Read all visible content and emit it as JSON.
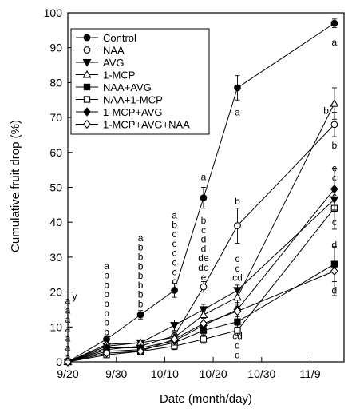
{
  "chart_data": {
    "type": "line",
    "title": "",
    "xlabel": "Date (month/day)",
    "ylabel": "Cumulative fruit drop (%)",
    "x_tick_labels": [
      "9/20",
      "9/30",
      "10/10",
      "10/20",
      "10/30",
      "11/9"
    ],
    "x_tick_days": [
      0,
      10,
      20,
      30,
      40,
      50
    ],
    "y_ticks": [
      0,
      10,
      20,
      30,
      40,
      50,
      60,
      70,
      80,
      90,
      100
    ],
    "ylim": [
      0,
      100
    ],
    "xlim": [
      0,
      57
    ],
    "grid": false,
    "legend_position": "top-left",
    "x_dates": [
      "9/20",
      "9/28",
      "10/5",
      "10/12",
      "10/18",
      "10/25",
      "11/14"
    ],
    "x_days": [
      0,
      8,
      15,
      22,
      28,
      35,
      55
    ],
    "series": [
      {
        "name": "Control",
        "marker": "filled-circle",
        "values": [
          0,
          6.5,
          13.5,
          20.5,
          47,
          78.5,
          97
        ],
        "errors": [
          0,
          1.0,
          1.2,
          2.0,
          3.0,
          3.5,
          1.2
        ]
      },
      {
        "name": "NAA",
        "marker": "open-circle",
        "values": [
          0,
          3.5,
          4.5,
          7.5,
          21.5,
          39,
          68
        ],
        "errors": [
          0,
          0.8,
          1.0,
          1.2,
          1.5,
          5.0,
          3.5
        ]
      },
      {
        "name": "AVG",
        "marker": "filled-triangle-down",
        "values": [
          0,
          4.5,
          5.5,
          10.5,
          15,
          20.5,
          46.5
        ],
        "errors": [
          0,
          0.8,
          0.8,
          1.5,
          1.5,
          1.5,
          3.5
        ]
      },
      {
        "name": "1-MCP",
        "marker": "open-triangle-up",
        "values": [
          0,
          5,
          5.5,
          7,
          13.5,
          18.5,
          74
        ],
        "errors": [
          0,
          0.8,
          0.8,
          1.0,
          1.5,
          2.0,
          4.5
        ]
      },
      {
        "name": "NAA+AVG",
        "marker": "filled-square",
        "values": [
          0,
          3,
          3.5,
          5.5,
          9,
          11.5,
          28
        ],
        "errors": [
          0,
          0.6,
          0.8,
          1.0,
          1.2,
          1.5,
          5.0
        ]
      },
      {
        "name": "NAA+1-MCP",
        "marker": "open-square",
        "values": [
          0,
          2,
          3,
          4.5,
          6.5,
          9,
          44
        ],
        "errors": [
          0,
          0.6,
          0.6,
          1.0,
          1.2,
          1.5,
          6.0
        ]
      },
      {
        "name": "1-MCP+AVG",
        "marker": "filled-diamond",
        "values": [
          0,
          4,
          4,
          6,
          10.5,
          15,
          49.5
        ],
        "errors": [
          0,
          0.8,
          0.8,
          1.2,
          1.5,
          2.0,
          6.0
        ]
      },
      {
        "name": "1-MCP+AVG+NAA",
        "marker": "open-diamond",
        "values": [
          0,
          2.5,
          3,
          6.5,
          11,
          14.5,
          26
        ],
        "errors": [
          0,
          0.6,
          0.6,
          1.0,
          1.5,
          1.5,
          7.0
        ]
      }
    ],
    "annotations": [
      {
        "day": 0,
        "y": 17.5,
        "text": "a"
      },
      {
        "day": 0,
        "y": 14.8,
        "text": "a"
      },
      {
        "day": 0,
        "y": 12.1,
        "text": "a"
      },
      {
        "day": 0,
        "y": 9.4,
        "text": "a"
      },
      {
        "day": 0,
        "y": 6.7,
        "text": "a"
      },
      {
        "day": 0,
        "y": 4.0,
        "text": "a"
      },
      {
        "day": 0,
        "y": 1.3,
        "text": "a"
      },
      {
        "day": 1.4,
        "y": 18.8,
        "text": "y"
      },
      {
        "day": 8,
        "y": 27.5,
        "text": "a"
      },
      {
        "day": 8,
        "y": 24.8,
        "text": "b"
      },
      {
        "day": 8,
        "y": 22.1,
        "text": "b"
      },
      {
        "day": 8,
        "y": 19.4,
        "text": "b"
      },
      {
        "day": 8,
        "y": 16.7,
        "text": "b"
      },
      {
        "day": 8,
        "y": 14.0,
        "text": "b"
      },
      {
        "day": 8,
        "y": 11.3,
        "text": "b"
      },
      {
        "day": 8,
        "y": 8.6,
        "text": "b"
      },
      {
        "day": 15,
        "y": 35.5,
        "text": "a"
      },
      {
        "day": 15,
        "y": 32.8,
        "text": "b"
      },
      {
        "day": 15,
        "y": 30.1,
        "text": "b"
      },
      {
        "day": 15,
        "y": 27.4,
        "text": "b"
      },
      {
        "day": 15,
        "y": 24.7,
        "text": "b"
      },
      {
        "day": 15,
        "y": 22.0,
        "text": "b"
      },
      {
        "day": 15,
        "y": 19.3,
        "text": "b"
      },
      {
        "day": 15,
        "y": 16.6,
        "text": "b"
      },
      {
        "day": 22,
        "y": 42.0,
        "text": "a"
      },
      {
        "day": 22,
        "y": 39.3,
        "text": "b"
      },
      {
        "day": 22,
        "y": 36.6,
        "text": "c"
      },
      {
        "day": 22,
        "y": 33.9,
        "text": "c"
      },
      {
        "day": 22,
        "y": 31.2,
        "text": "c"
      },
      {
        "day": 22,
        "y": 28.5,
        "text": "c"
      },
      {
        "day": 22,
        "y": 25.8,
        "text": "c"
      },
      {
        "day": 22,
        "y": 23.1,
        "text": "c"
      },
      {
        "day": 28,
        "y": 53.0,
        "text": "a"
      },
      {
        "day": 28,
        "y": 40.5,
        "text": "b"
      },
      {
        "day": 28,
        "y": 37.8,
        "text": "c"
      },
      {
        "day": 28,
        "y": 35.1,
        "text": "d"
      },
      {
        "day": 28,
        "y": 32.4,
        "text": "d"
      },
      {
        "day": 28,
        "y": 29.7,
        "text": "de"
      },
      {
        "day": 28,
        "y": 27.0,
        "text": "de"
      },
      {
        "day": 28,
        "y": 24.3,
        "text": "e"
      },
      {
        "day": 35,
        "y": 71.5,
        "text": "a"
      },
      {
        "day": 35,
        "y": 46.0,
        "text": "b"
      },
      {
        "day": 35,
        "y": 29.5,
        "text": "c"
      },
      {
        "day": 35,
        "y": 26.8,
        "text": "c"
      },
      {
        "day": 35,
        "y": 24.1,
        "text": "cd"
      },
      {
        "day": 35,
        "y": 7.4,
        "text": "cd"
      },
      {
        "day": 35,
        "y": 4.7,
        "text": "d"
      },
      {
        "day": 35,
        "y": 2.0,
        "text": "d"
      },
      {
        "day": 55,
        "y": 91.5,
        "text": "a"
      },
      {
        "day": 53.3,
        "y": 72.0,
        "text": "b"
      },
      {
        "day": 55,
        "y": 62.0,
        "text": "b"
      },
      {
        "day": 55,
        "y": 55.5,
        "text": "c"
      },
      {
        "day": 55,
        "y": 52.8,
        "text": "c"
      },
      {
        "day": 55,
        "y": 47.5,
        "text": "c"
      },
      {
        "day": 55,
        "y": 40.0,
        "text": "c"
      },
      {
        "day": 55,
        "y": 33.5,
        "text": "d"
      },
      {
        "day": 55,
        "y": 20.5,
        "text": "d"
      }
    ]
  }
}
